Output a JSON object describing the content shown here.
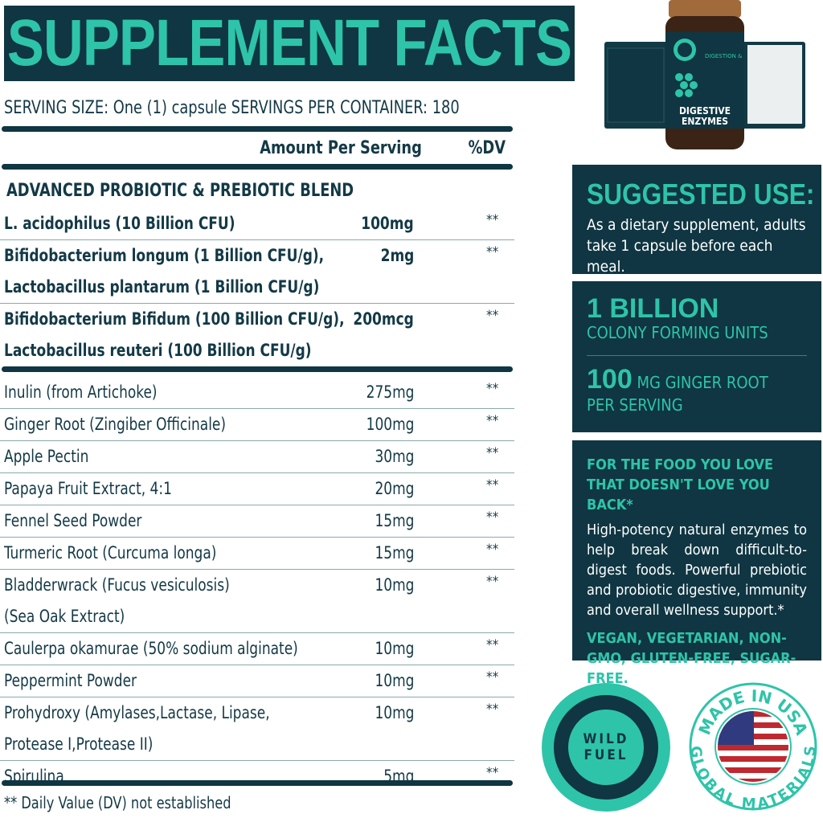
{
  "title": "SUPPLEMENT FACTS",
  "serving": "SERVING SIZE: One (1) capsule   SERVINGS PER CONTAINER: 180",
  "header": {
    "amount": "Amount Per Serving",
    "dv": "%DV"
  },
  "blend_title": "ADVANCED PROBIOTIC & PREBIOTIC BLEND",
  "blend_rows": [
    {
      "lines": [
        "L. acidophilus (10 Billion CFU)"
      ],
      "amount": "100mg",
      "dv": "**"
    },
    {
      "lines": [
        "Bifidobacterium longum (1 Billion CFU/g),",
        "Lactobacillus plantarum (1 Billion CFU/g)"
      ],
      "amount": "2mg",
      "dv": "**"
    },
    {
      "lines": [
        "Bifidobacterium Bifidum (100 Billion CFU/g),",
        "Lactobacillus reuteri (100 Billion CFU/g)"
      ],
      "amount": "200mcg",
      "dv": "**"
    }
  ],
  "rows": [
    {
      "lines": [
        "Inulin (from Artichoke)"
      ],
      "amount": "275mg",
      "dv": "**"
    },
    {
      "lines": [
        "Ginger Root (Zingiber Officinale)"
      ],
      "amount": "100mg",
      "dv": "**"
    },
    {
      "lines": [
        "Apple Pectin"
      ],
      "amount": "30mg",
      "dv": "**"
    },
    {
      "lines": [
        "Papaya Fruit Extract, 4:1"
      ],
      "amount": "20mg",
      "dv": "**"
    },
    {
      "lines": [
        "Fennel Seed Powder"
      ],
      "amount": "15mg",
      "dv": "**"
    },
    {
      "lines": [
        "Turmeric Root (Curcuma longa)"
      ],
      "amount": "15mg",
      "dv": "**"
    },
    {
      "lines": [
        "Bladderwrack (Fucus vesiculosis)",
        "(Sea Oak Extract)"
      ],
      "amount": "10mg",
      "dv": "**"
    },
    {
      "lines": [
        "Caulerpa okamurae (50% sodium alginate)"
      ],
      "amount": "10mg",
      "dv": "**"
    },
    {
      "lines": [
        "Peppermint Powder"
      ],
      "amount": "10mg",
      "dv": "**"
    },
    {
      "lines": [
        "Prohydroxy (Amylases,Lactase, Lipase,",
        "Protease I,Protease II)"
      ],
      "amount": "10mg",
      "dv": "**"
    },
    {
      "lines": [
        "Spirulina"
      ],
      "amount": "5mg",
      "dv": "**"
    }
  ],
  "footnote": "** Daily Value (DV) not established",
  "product": {
    "name1": "DIGESTIVE",
    "name2": "ENZYMES",
    "claim": "DIGESTION & BLOATING RELIEF*",
    "brand": "WILD FUEL"
  },
  "suggested": {
    "title": "SUGGESTED USE:",
    "text": "As a dietary supplement, adults take 1 capsule before each meal."
  },
  "stats": {
    "num1": "1 BILLION",
    "label1": "COLONY FORMING UNITS",
    "num2": "100",
    "unit2": "MG GINGER ROOT",
    "label2": "PER SERVING"
  },
  "promo": {
    "headline": "FOR THE FOOD YOU LOVE THAT DOESN'T LOVE YOU BACK*",
    "text": "High-potency natural enzymes to help break down difficult-to-digest foods. Powerful prebiotic and probiotic digestive, immunity and overall wellness support.*",
    "tags": "VEGAN, VEGETARIAN, NON-GMO, GLUTEN-FREE, SUGAR-FREE."
  },
  "badges": {
    "brand_line1": "WILD",
    "brand_line2": "FUEL",
    "usa_top": "MADE IN USA",
    "usa_bottom": "GLOBAL MATERIALS"
  },
  "colors": {
    "dark": "#0f3642",
    "teal": "#2ec4a9"
  }
}
